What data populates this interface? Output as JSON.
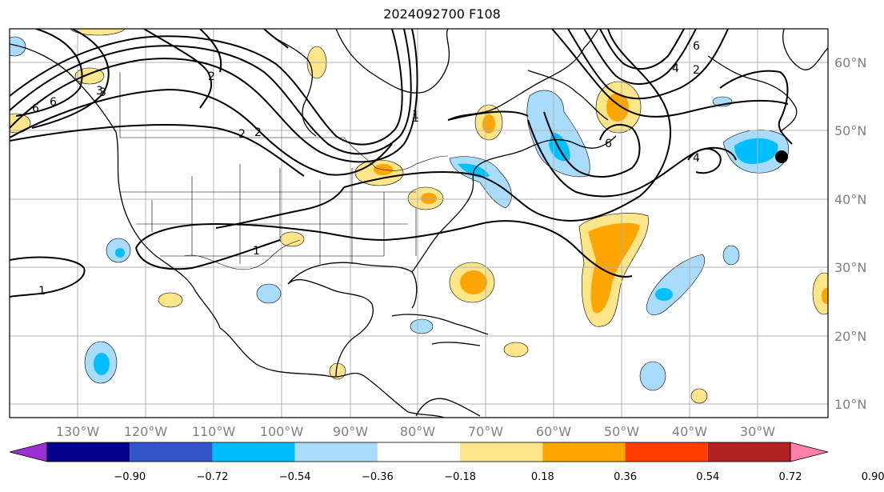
{
  "title": "2024092700 F108",
  "lon_labels": [
    "130°W",
    "120°W",
    "110°W",
    "100°W",
    "90°W",
    "80°W",
    "70°W",
    "60°W",
    "50°W",
    "40°W",
    "30°W"
  ],
  "lat_labels": [
    "60°N",
    "50°N",
    "40°N",
    "30°N",
    "20°N",
    "10°N"
  ],
  "colorbar": {
    "ticks": [
      "−0.90",
      "−0.72",
      "−0.54",
      "−0.36",
      "−0.18",
      "0.18",
      "0.36",
      "0.54",
      "0.72",
      "0.90"
    ],
    "colors": [
      "#9b30d0",
      "#00008b",
      "#3355cc",
      "#00bfff",
      "#a8dcfa",
      "#ffffff",
      "#fde68a",
      "#ffa500",
      "#ff3d00",
      "#b22222",
      "#ff80aa"
    ]
  },
  "contour_labels": [
    "6",
    "6",
    "3",
    "2",
    "2",
    "1",
    "1",
    "1",
    "4",
    "6",
    "2",
    "6",
    "4",
    "1",
    "2",
    "3"
  ],
  "colors": {
    "gridline": "#b0b0b0",
    "coast": "#000000",
    "marker": "#000000"
  }
}
